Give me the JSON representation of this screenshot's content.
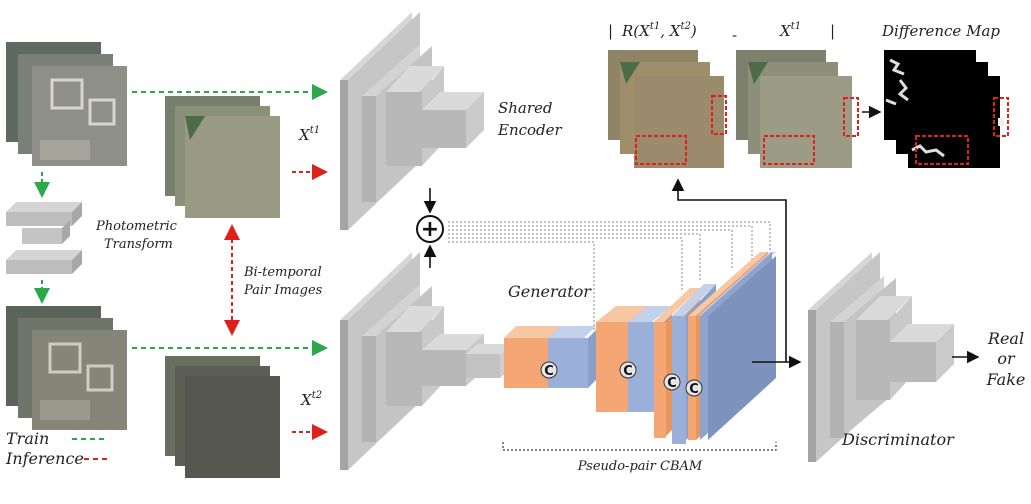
{
  "labels": {
    "shared_encoder_1": "Shared",
    "shared_encoder_2": "Encoder",
    "x_t1": "X",
    "x_t1_sup": "t1",
    "x_t2": "X",
    "x_t2_sup": "t2",
    "photometric_1": "Photometric",
    "photometric_2": "Transform",
    "bitemporal_1": "Bi-temporal",
    "bitemporal_2": "Pair Images",
    "generator": "Generator",
    "discriminator": "Discriminator",
    "pseudo_pair": "Pseudo-pair CBAM",
    "difference_map": "Difference Map",
    "r_expr": "R(X",
    "r_sup1": "t1",
    "r_mid": ", X",
    "r_sup2": "t2",
    "r_close": ")",
    "minus": "-",
    "bar": "|",
    "xt1_top": "X",
    "xt1_top_sup": "t1",
    "real": "Real",
    "or": "or",
    "fake": "Fake",
    "train": "Train",
    "inference": "Inference",
    "concat": "C",
    "plus": "+"
  },
  "colors": {
    "train_arrow": "#2aa84a",
    "inference_arrow": "#e0201a",
    "block_gray": "#b8b8b8",
    "orange": "#f4a675",
    "blue": "#9ab0d8"
  }
}
